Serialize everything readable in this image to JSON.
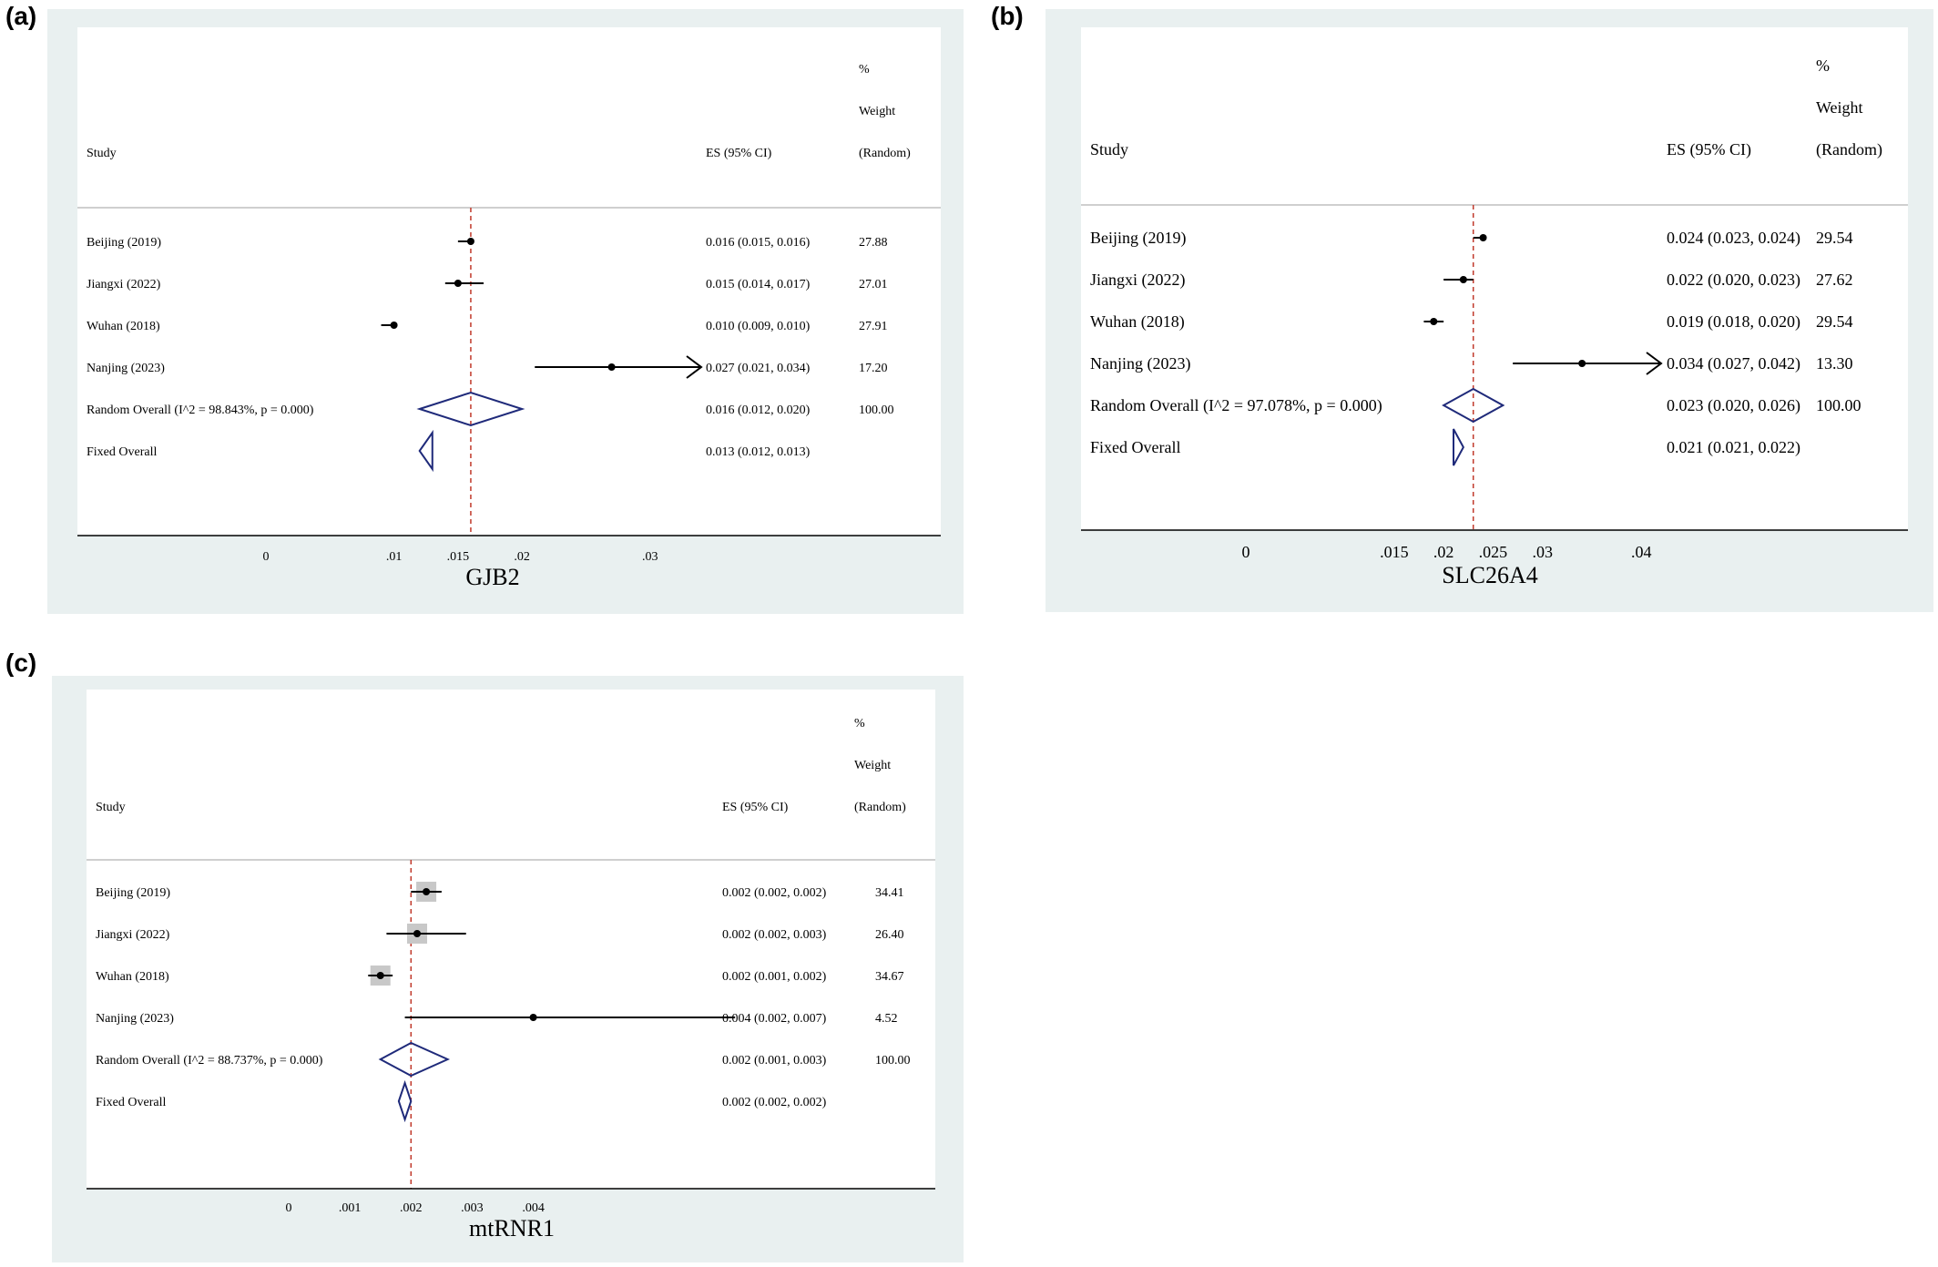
{
  "panels": [
    {
      "label": "(a)"
    },
    {
      "label": "(b)"
    },
    {
      "label": "(c)"
    }
  ],
  "colors": {
    "outer_bg": "#e9f0f0",
    "plot_bg": "#ffffff",
    "ci_line": "#000000",
    "diamond": "#1f2a7a",
    "ref_line": "#c0392b",
    "weight_box": "#c8c8c8"
  },
  "chart_data": [
    {
      "type": "forest",
      "xlabel": "GJB2",
      "header": {
        "study": "Study",
        "es": "ES (95% CI)",
        "weight_line1": "%",
        "weight_line2": "Weight",
        "weight_line3": "(Random)"
      },
      "xticks": [
        0,
        0.01,
        0.015,
        0.02,
        0.03
      ],
      "xtick_labels": [
        "0",
        ".01",
        ".015",
        ".02",
        ".03"
      ],
      "xlim": [
        0,
        0.034
      ],
      "reference_line": 0.016,
      "studies": [
        {
          "name": "Beijing (2019)",
          "es": 0.016,
          "lo": 0.015,
          "hi": 0.016,
          "es_text": "0.016 (0.015, 0.016)",
          "weight": "27.88"
        },
        {
          "name": "Jiangxi (2022)",
          "es": 0.015,
          "lo": 0.014,
          "hi": 0.017,
          "es_text": "0.015 (0.014, 0.017)",
          "weight": "27.01"
        },
        {
          "name": "Wuhan (2018)",
          "es": 0.01,
          "lo": 0.009,
          "hi": 0.01,
          "es_text": "0.010 (0.009, 0.010)",
          "weight": "27.91"
        },
        {
          "name": "Nanjing (2023)",
          "es": 0.027,
          "lo": 0.021,
          "hi": 0.034,
          "es_text": "0.027 (0.021, 0.034)",
          "weight": "17.20",
          "arrow": true
        }
      ],
      "random_overall": {
        "name": "Random Overall  (I^2 = 98.843%, p = 0.000)",
        "es": 0.016,
        "lo": 0.012,
        "hi": 0.02,
        "es_text": "0.016 (0.012, 0.020)",
        "weight": "100.00"
      },
      "fixed_overall": {
        "name": "Fixed Overall",
        "es": 0.013,
        "lo": 0.012,
        "hi": 0.013,
        "es_text": "0.013 (0.012, 0.013)",
        "weight": ""
      }
    },
    {
      "type": "forest",
      "xlabel": "SLC26A4",
      "header": {
        "study": "Study",
        "es": "ES (95% CI)",
        "weight_line1": "%",
        "weight_line2": "Weight",
        "weight_line3": "(Random)"
      },
      "xticks": [
        0,
        0.015,
        0.02,
        0.025,
        0.03,
        0.04
      ],
      "xtick_labels": [
        "0",
        ".015",
        ".02",
        ".025",
        ".03",
        ".04"
      ],
      "xlim": [
        0,
        0.042
      ],
      "reference_line": 0.023,
      "studies": [
        {
          "name": "Beijing (2019)",
          "es": 0.024,
          "lo": 0.023,
          "hi": 0.024,
          "es_text": "0.024 (0.023, 0.024)",
          "weight": "29.54"
        },
        {
          "name": "Jiangxi (2022)",
          "es": 0.022,
          "lo": 0.02,
          "hi": 0.023,
          "es_text": "0.022 (0.020, 0.023)",
          "weight": "27.62"
        },
        {
          "name": "Wuhan (2018)",
          "es": 0.019,
          "lo": 0.018,
          "hi": 0.02,
          "es_text": "0.019 (0.018, 0.020)",
          "weight": "29.54"
        },
        {
          "name": "Nanjing (2023)",
          "es": 0.034,
          "lo": 0.027,
          "hi": 0.042,
          "es_text": "0.034 (0.027, 0.042)",
          "weight": "13.30",
          "arrow": true
        }
      ],
      "random_overall": {
        "name": "Random Overall  (I^2 = 97.078%, p = 0.000)",
        "es": 0.023,
        "lo": 0.02,
        "hi": 0.026,
        "es_text": "0.023 (0.020, 0.026)",
        "weight": "100.00"
      },
      "fixed_overall": {
        "name": "Fixed Overall",
        "es": 0.021,
        "lo": 0.021,
        "hi": 0.022,
        "es_text": "0.021 (0.021, 0.022)",
        "weight": ""
      }
    },
    {
      "type": "forest",
      "xlabel": "mtRNR1",
      "header": {
        "study": "Study",
        "es": "ES (95% CI)",
        "weight_line1": "%",
        "weight_line2": "Weight",
        "weight_line3": "(Random)"
      },
      "xticks": [
        0,
        0.001,
        0.002,
        0.003,
        0.004
      ],
      "xtick_labels": [
        "0",
        ".001",
        ".002",
        ".003",
        ".004"
      ],
      "xlim": [
        0,
        0.007
      ],
      "reference_line": 0.002,
      "studies": [
        {
          "name": "Beijing (2019)",
          "es": 0.00225,
          "lo": 0.002,
          "hi": 0.0025,
          "es_text": "0.002 (0.002, 0.002)",
          "weight": "34.41",
          "box": true
        },
        {
          "name": "Jiangxi (2022)",
          "es": 0.0021,
          "lo": 0.0016,
          "hi": 0.0029,
          "es_text": "0.002 (0.002, 0.003)",
          "weight": "26.40",
          "box": true
        },
        {
          "name": "Wuhan (2018)",
          "es": 0.0015,
          "lo": 0.0013,
          "hi": 0.0017,
          "es_text": "0.002 (0.001, 0.002)",
          "weight": "34.67",
          "box": true
        },
        {
          "name": "Nanjing (2023)",
          "es": 0.004,
          "lo": 0.0019,
          "hi": 0.0073,
          "es_text": "0.004 (0.002, 0.007)",
          "weight": "4.52"
        }
      ],
      "random_overall": {
        "name": "Random Overall  (I^2 = 88.737%, p = 0.000)",
        "es": 0.002,
        "lo": 0.0015,
        "hi": 0.0026,
        "es_text": "0.002 (0.001, 0.003)",
        "weight": "100.00"
      },
      "fixed_overall": {
        "name": "Fixed Overall",
        "es": 0.0019,
        "lo": 0.0018,
        "hi": 0.002,
        "es_text": "0.002 (0.002, 0.002)",
        "weight": ""
      }
    }
  ]
}
